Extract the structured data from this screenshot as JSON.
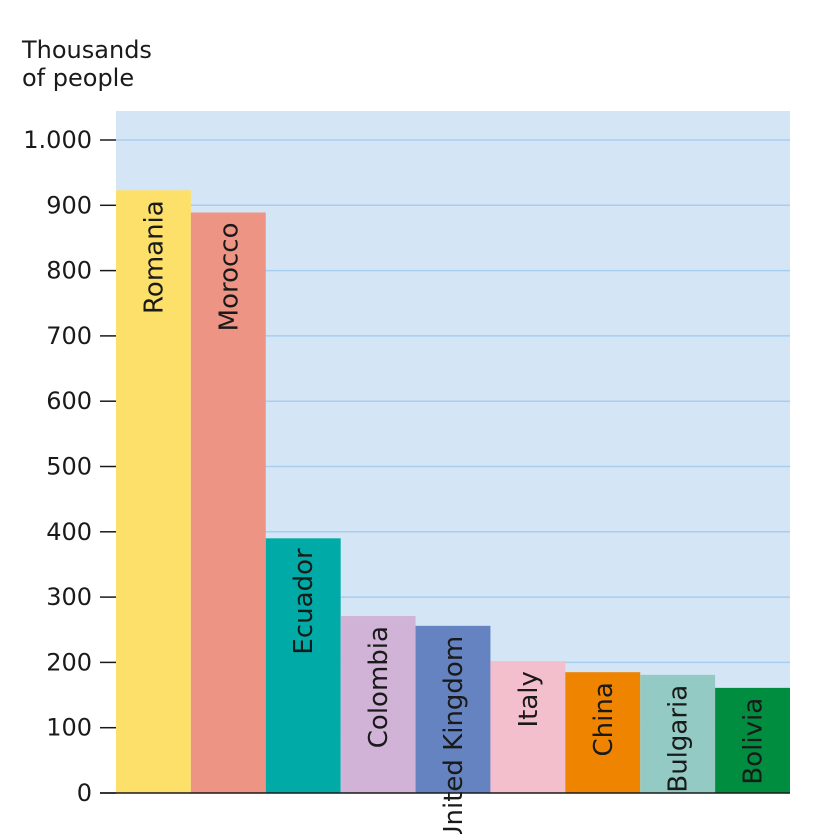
{
  "chart_data": {
    "type": "bar",
    "ylabel_lines": [
      "Thousands",
      "of people"
    ],
    "categories": [
      "Romania",
      "Morocco",
      "Ecuador",
      "Colombia",
      "United Kingdom",
      "Italy",
      "China",
      "Bulgaria",
      "Bolivia"
    ],
    "values": [
      923,
      889,
      390,
      271,
      256,
      202,
      185,
      181,
      161
    ],
    "ylim": [
      0,
      1000
    ],
    "yticks": [
      0,
      100,
      200,
      300,
      400,
      500,
      600,
      700,
      800,
      900,
      1000
    ],
    "ytick_labels": [
      "0",
      "100",
      "200",
      "300",
      "400",
      "500",
      "600",
      "700",
      "800",
      "900",
      "1.000"
    ],
    "grid": true,
    "colors": {
      "plot_background": "#d4e6f6",
      "gridline": "#a9cdef",
      "bars": [
        "#fde06a",
        "#ee9485",
        "#00aaa6",
        "#d0b3d6",
        "#6583c0",
        "#f4bfcd",
        "#ee8400",
        "#93cbc4",
        "#008d3f"
      ]
    }
  }
}
